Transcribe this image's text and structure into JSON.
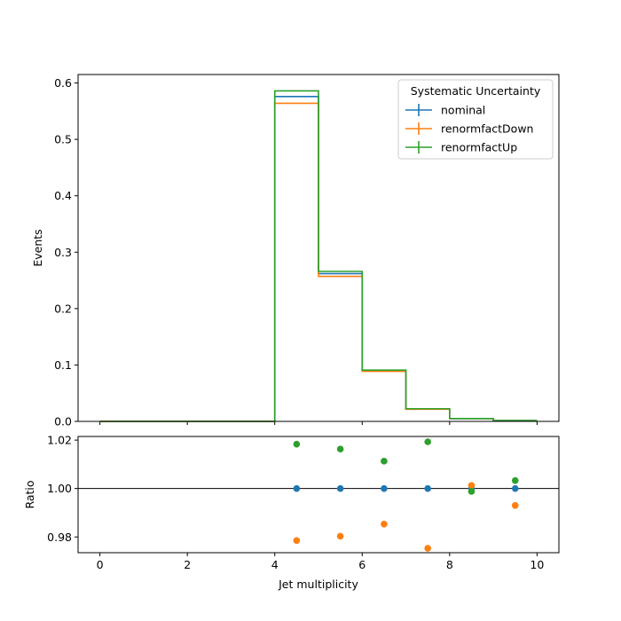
{
  "chart_data": [
    {
      "type": "step",
      "panel": "main",
      "xlabel": "",
      "ylabel": "Events",
      "xlim": [
        -0.5,
        10.5
      ],
      "ylim": [
        0,
        0.615
      ],
      "xticks": [
        0,
        2,
        4,
        6,
        8,
        10
      ],
      "yticks": [
        0.0,
        0.1,
        0.2,
        0.3,
        0.4,
        0.5,
        0.6
      ],
      "ytick_labels": [
        "0.0",
        "0.1",
        "0.2",
        "0.3",
        "0.4",
        "0.5",
        "0.6"
      ],
      "bin_edges": [
        0,
        1,
        2,
        3,
        4,
        5,
        6,
        7,
        8,
        9,
        10
      ],
      "legend": {
        "title": "Systematic Uncertainty",
        "placement": "top-right"
      },
      "series": [
        {
          "name": "nominal",
          "color": "#1f77b4",
          "values": [
            0,
            0,
            0,
            0,
            0.576,
            0.262,
            0.09,
            0.022,
            0.005,
            0.0014
          ]
        },
        {
          "name": "renormfactDown",
          "color": "#ff7f0e",
          "values": [
            0,
            0,
            0,
            0,
            0.564,
            0.257,
            0.0887,
            0.0215,
            0.00502,
            0.00139
          ]
        },
        {
          "name": "renormfactUp",
          "color": "#2ca02c",
          "values": [
            0,
            0,
            0,
            0,
            0.586,
            0.266,
            0.091,
            0.0224,
            0.004993,
            0.001404
          ]
        }
      ]
    },
    {
      "type": "scatter",
      "panel": "ratio",
      "xlabel": "Jet multiplicity",
      "ylabel": "Ratio",
      "xlim": [
        -0.5,
        10.5
      ],
      "ylim": [
        0.9735,
        1.0215
      ],
      "xticks": [
        0,
        2,
        4,
        6,
        8,
        10
      ],
      "yticks": [
        0.98,
        1.0,
        1.02
      ],
      "ytick_labels": [
        "0.98",
        "1.00",
        "1.02"
      ],
      "reference_line": 1.0,
      "series": [
        {
          "name": "nominal",
          "color": "#1f77b4",
          "x": [
            4.5,
            5.5,
            6.5,
            7.5,
            8.5,
            9.5
          ],
          "y": [
            1.0,
            1.0,
            1.0,
            1.0,
            1.0,
            1.0
          ]
        },
        {
          "name": "renormfactDown",
          "color": "#ff7f0e",
          "x": [
            4.5,
            5.5,
            6.5,
            7.5,
            8.5,
            9.5
          ],
          "y": [
            0.9785,
            0.9803,
            0.9853,
            0.9753,
            1.0013,
            0.993
          ]
        },
        {
          "name": "renormfactUp",
          "color": "#2ca02c",
          "x": [
            4.5,
            5.5,
            6.5,
            7.5,
            8.5,
            9.5
          ],
          "y": [
            1.0183,
            1.0163,
            1.0113,
            1.0193,
            0.9988,
            1.0033
          ]
        }
      ]
    }
  ]
}
